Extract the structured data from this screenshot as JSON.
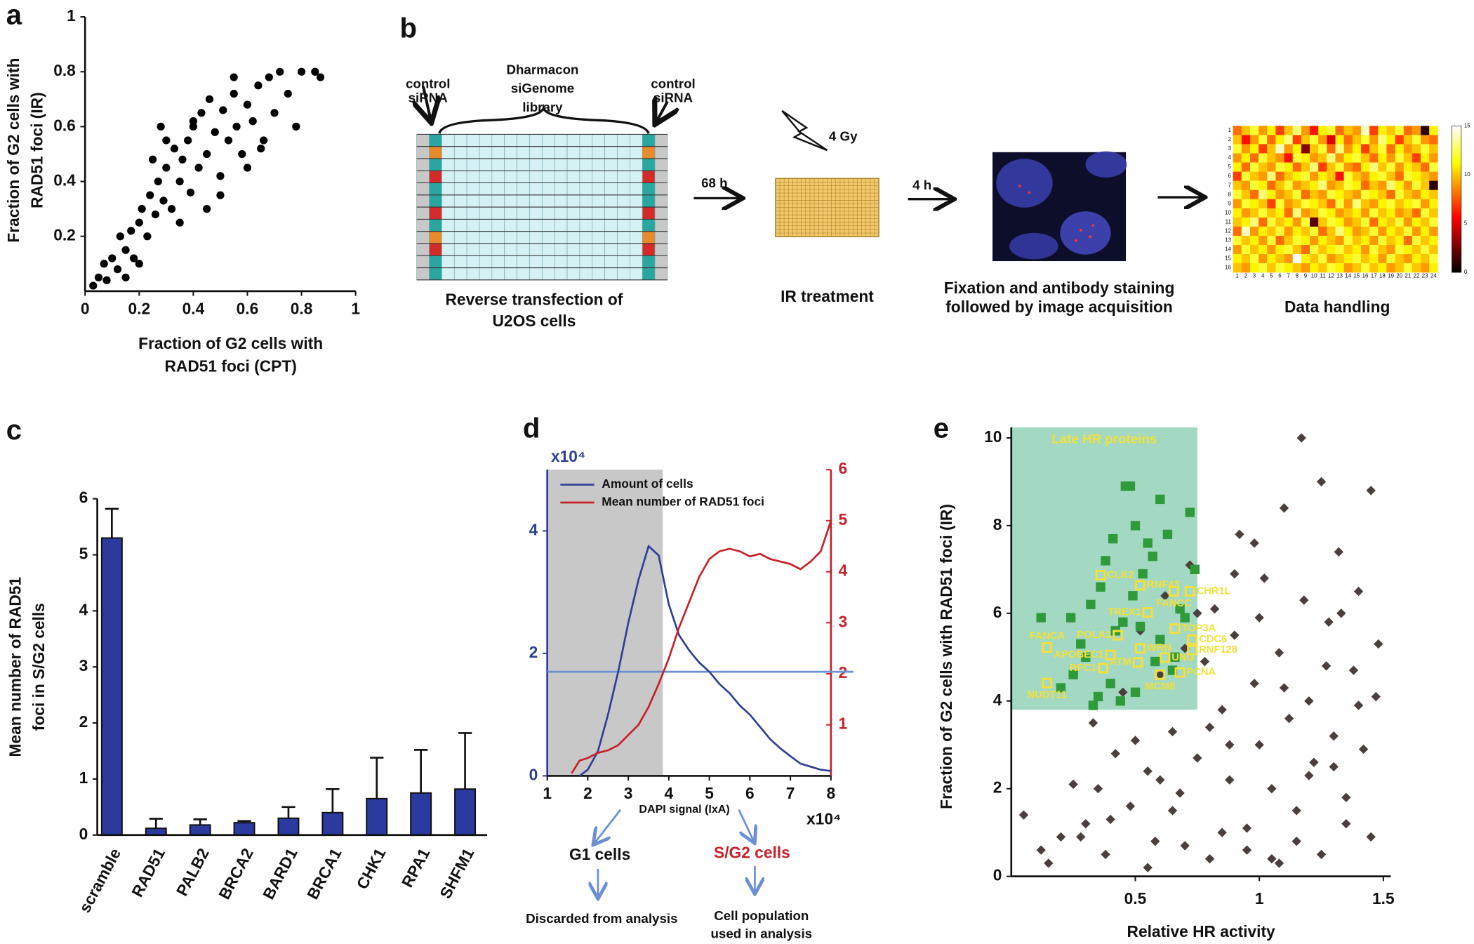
{
  "panel_labels": [
    "a",
    "b",
    "c",
    "d",
    "e"
  ],
  "chart_data": [
    {
      "type": "scatter",
      "color": "#000000",
      "x": [
        0.03,
        0.05,
        0.07,
        0.08,
        0.1,
        0.12,
        0.13,
        0.15,
        0.17,
        0.18,
        0.2,
        0.21,
        0.23,
        0.24,
        0.26,
        0.27,
        0.29,
        0.3,
        0.32,
        0.33,
        0.35,
        0.36,
        0.38,
        0.39,
        0.4,
        0.42,
        0.43,
        0.45,
        0.46,
        0.48,
        0.5,
        0.51,
        0.53,
        0.55,
        0.56,
        0.58,
        0.6,
        0.62,
        0.64,
        0.66,
        0.68,
        0.7,
        0.72,
        0.75,
        0.78,
        0.8,
        0.85,
        0.87,
        0.25,
        0.3,
        0.35,
        0.28,
        0.45,
        0.5,
        0.6,
        0.15,
        0.2,
        0.4,
        0.55,
        0.65
      ],
      "values": [
        0.02,
        0.05,
        0.1,
        0.04,
        0.12,
        0.08,
        0.2,
        0.15,
        0.22,
        0.12,
        0.25,
        0.3,
        0.2,
        0.35,
        0.28,
        0.4,
        0.33,
        0.45,
        0.3,
        0.52,
        0.4,
        0.48,
        0.55,
        0.36,
        0.6,
        0.45,
        0.65,
        0.5,
        0.7,
        0.58,
        0.42,
        0.66,
        0.55,
        0.72,
        0.6,
        0.5,
        0.68,
        0.62,
        0.75,
        0.55,
        0.78,
        0.65,
        0.8,
        0.72,
        0.6,
        0.8,
        0.8,
        0.78,
        0.48,
        0.55,
        0.25,
        0.6,
        0.3,
        0.35,
        0.45,
        0.05,
        0.1,
        0.62,
        0.78,
        0.52
      ],
      "xlim": [
        0,
        1
      ],
      "ylim": [
        0,
        1
      ],
      "xticks": [
        0,
        0.2,
        0.4,
        0.6,
        0.8,
        1
      ],
      "yticks": [
        0.2,
        0.4,
        0.6,
        0.8,
        1
      ],
      "xlabel": [
        "Fraction of G2 cells with",
        "RAD51 foci (CPT)"
      ],
      "ylabel": [
        "Fraction of G2 cells with",
        "RAD51 foci (IR)"
      ]
    },
    {
      "type": "bar",
      "color": "#2a3a9e",
      "categories": [
        "scramble",
        "RAD51",
        "PALB2",
        "BRCA2",
        "BARD1",
        "BRCA1",
        "CHK1",
        "RPA1",
        "SHFM1"
      ],
      "values": [
        5.3,
        0.12,
        0.18,
        0.22,
        0.3,
        0.4,
        0.65,
        0.75,
        0.82
      ],
      "errors": [
        0.52,
        0.17,
        0.1,
        0.03,
        0.2,
        0.42,
        0.73,
        0.77,
        1.0
      ],
      "ylim": [
        0,
        6
      ],
      "yticks": [
        0,
        1,
        2,
        3,
        4,
        5,
        6
      ],
      "ylabel": [
        "Mean number of RAD51",
        "foci in S/G2 cells"
      ]
    },
    {
      "type": "line",
      "x": [
        1.6,
        1.8,
        2,
        2.25,
        2.5,
        2.75,
        3,
        3.25,
        3.5,
        3.75,
        4,
        4.25,
        4.5,
        4.75,
        5,
        5.25,
        5.5,
        5.75,
        6,
        6.25,
        6.5,
        6.75,
        7,
        7.25,
        7.5,
        7.75,
        8
      ],
      "series": [
        {
          "name": "Amount of cells",
          "color": "#2e3f95",
          "values": [
            null,
            0,
            0.1,
            0.4,
            1.0,
            1.7,
            2.5,
            3.2,
            3.75,
            3.6,
            2.8,
            2.3,
            2.05,
            1.85,
            1.7,
            1.5,
            1.35,
            1.15,
            1.0,
            0.8,
            0.6,
            0.45,
            0.32,
            0.2,
            0.15,
            0.1,
            0.08
          ]
        },
        {
          "name": "Mean number of RAD51 foci",
          "color": "#c8202a",
          "axis": "y2",
          "values": [
            0.05,
            0.3,
            0.35,
            0.45,
            0.5,
            0.6,
            0.8,
            1.0,
            1.35,
            1.8,
            2.3,
            2.9,
            3.4,
            3.9,
            4.25,
            4.4,
            4.45,
            4.4,
            4.3,
            4.35,
            4.25,
            4.2,
            4.15,
            4.05,
            4.2,
            4.4,
            5.0
          ]
        }
      ],
      "xlim": [
        1,
        8
      ],
      "ylim": [
        0,
        5
      ],
      "y2lim": [
        0,
        6
      ],
      "xticks": [
        1,
        2,
        3,
        4,
        5,
        6,
        7,
        8
      ],
      "yticks": [
        0,
        2,
        4
      ],
      "y2ticks": [
        1,
        2,
        3,
        4,
        5,
        6
      ],
      "gate": [
        1,
        3.85
      ],
      "gate_color": "#c8c8c8",
      "threshold": 1.7,
      "threshold_color": "#6b8fd2",
      "y_multiplier": "x10⁴",
      "x_multiplier": "x10⁴",
      "xlabel": "DAPI signal (IxA)"
    },
    {
      "type": "scatter",
      "series": [
        {
          "color": "#4a3f3c",
          "marker": "diamond",
          "x": [
            0.05,
            0.12,
            0.2,
            0.25,
            0.3,
            0.33,
            0.38,
            0.42,
            0.45,
            0.48,
            0.5,
            0.52,
            0.55,
            0.58,
            0.6,
            0.62,
            0.65,
            0.68,
            0.7,
            0.72,
            0.75,
            0.78,
            0.8,
            0.82,
            0.85,
            0.88,
            0.9,
            0.92,
            0.95,
            0.98,
            1.0,
            1.02,
            1.05,
            1.08,
            1.1,
            1.12,
            1.15,
            1.18,
            1.2,
            1.22,
            1.25,
            1.28,
            1.3,
            1.32,
            1.35,
            1.38,
            1.4,
            1.42,
            1.45,
            1.48,
            0.15,
            0.28,
            0.4,
            0.55,
            0.7,
            0.85,
            0.95,
            1.05,
            1.15,
            1.25,
            1.35,
            1.45,
            0.6,
            0.8,
            1.0,
            1.2,
            1.4,
            0.9,
            1.1,
            1.3,
            0.35,
            0.65,
            0.75,
            0.98,
            1.17,
            1.33,
            1.47,
            1.08,
            0.88,
            1.27
          ],
          "values": [
            1.4,
            0.6,
            0.9,
            2.1,
            1.2,
            3.5,
            0.5,
            2.8,
            4.2,
            1.6,
            3.1,
            5.6,
            2.4,
            0.8,
            4.6,
            6.4,
            3.3,
            1.9,
            5.2,
            7.1,
            2.7,
            4.9,
            0.4,
            6.1,
            3.8,
            2.2,
            5.5,
            7.8,
            1.1,
            4.4,
            3.0,
            6.8,
            2.0,
            5.1,
            8.4,
            3.6,
            1.5,
            6.3,
            4.0,
            2.6,
            9.0,
            5.8,
            3.2,
            7.4,
            1.8,
            4.7,
            6.5,
            2.9,
            8.8,
            5.3,
            0.3,
            0.9,
            1.3,
            0.2,
            0.7,
            1.0,
            0.6,
            0.4,
            0.8,
            0.5,
            1.2,
            0.9,
            2.2,
            3.4,
            5.9,
            2.3,
            3.9,
            6.9,
            4.3,
            2.5,
            2.0,
            1.5,
            6.0,
            7.6,
            10.0,
            6.0,
            4.1,
            0.3,
            3.0,
            4.8
          ]
        },
        {
          "color": "#2f9a3a",
          "marker": "square",
          "x": [
            0.2,
            0.25,
            0.3,
            0.35,
            0.4,
            0.45,
            0.5,
            0.55,
            0.6,
            0.65,
            0.7,
            0.72,
            0.32,
            0.38,
            0.42,
            0.48,
            0.53,
            0.58,
            0.63,
            0.68,
            0.28,
            0.36,
            0.44,
            0.5,
            0.57,
            0.66,
            0.74,
            0.46,
            0.52,
            0.6,
            0.24,
            0.33,
            0.41,
            0.49,
            0.12
          ],
          "values": [
            4.3,
            4.6,
            5.0,
            4.1,
            4.4,
            5.8,
            4.2,
            7.6,
            5.4,
            4.7,
            5.9,
            8.3,
            6.2,
            7.2,
            5.6,
            8.9,
            6.9,
            4.9,
            7.8,
            6.1,
            5.3,
            6.6,
            4.0,
            8.0,
            7.3,
            5.0,
            7.0,
            8.9,
            5.7,
            8.6,
            5.9,
            3.9,
            7.7,
            6.4,
            5.9
          ]
        }
      ],
      "labeled_points": {
        "color": "#f4e03a",
        "labels": [
          "CLK2",
          "RNF43",
          "FANCC",
          "CHR1L",
          "TREX1",
          "TOP3A",
          "POLA1",
          "CDC6",
          "FANCA",
          "WRN",
          "RNF128",
          "APOBEC1",
          "UNG",
          "RFC1",
          "ATM",
          "PCNA",
          "MCM8",
          "NUDT11"
        ],
        "x": [
          0.36,
          0.52,
          0.655,
          0.72,
          0.55,
          0.66,
          0.43,
          0.73,
          0.144,
          0.52,
          0.73,
          0.4,
          0.62,
          0.37,
          0.51,
          0.68,
          0.6,
          0.144
        ],
        "values": [
          6.87,
          6.64,
          6.5,
          6.5,
          6.02,
          5.65,
          5.5,
          5.4,
          5.22,
          5.2,
          5.16,
          5.05,
          4.99,
          4.75,
          4.88,
          4.65,
          4.6,
          4.41
        ]
      },
      "region": {
        "label": "Late HR proteins",
        "x": [
          0,
          0.75
        ],
        "y": [
          3.8,
          10.24
        ],
        "color": "#a3d8c2"
      },
      "xlim": [
        0,
        1.53
      ],
      "ylim": [
        0,
        10.24
      ],
      "xticks": [
        0.5,
        1,
        1.5
      ],
      "yticks": [
        0,
        2,
        4,
        6,
        8,
        10
      ],
      "xlabel": "Relative HR activity",
      "ylabel": "Fraction of G2 cells with RAD51 foci (IR)"
    }
  ],
  "diagram": {
    "control_left": [
      "control",
      "siRNA"
    ],
    "library": [
      "Dharmacon",
      "siGenome",
      "library"
    ],
    "control_right": [
      "control",
      "siRNA"
    ],
    "step1": [
      "Reverse transfection of",
      "U2OS cells"
    ],
    "time1": "68 h",
    "dose": "4 Gy",
    "step2": "IR treatment",
    "time2": "4 h",
    "step3": [
      "Fixation and antibody staining",
      "followed by image acquisition"
    ],
    "step4": "Data handling",
    "heatmap": {
      "row_labels": [
        1,
        2,
        3,
        4,
        5,
        6,
        7,
        8,
        9,
        10,
        11,
        12,
        13,
        14,
        15,
        16
      ],
      "col_labels": [
        1,
        2,
        3,
        4,
        5,
        6,
        7,
        8,
        9,
        10,
        11,
        12,
        13,
        14,
        15,
        16,
        17,
        18,
        19,
        20,
        21,
        22,
        23,
        24
      ],
      "colorbar_ticks": [
        0,
        5,
        10,
        15
      ],
      "values": [
        [
          8,
          10,
          12,
          9,
          11,
          7,
          10,
          13,
          9,
          6,
          11,
          12,
          8,
          10,
          9,
          14,
          7,
          11,
          10,
          12,
          8,
          9,
          1,
          11
        ],
        [
          10,
          6,
          9,
          12,
          8,
          11,
          13,
          7,
          10,
          12,
          9,
          5,
          11,
          8,
          10,
          12,
          9,
          13,
          11,
          7,
          10,
          12,
          9,
          8
        ],
        [
          12,
          9,
          11,
          7,
          10,
          14,
          9,
          11,
          3,
          10,
          12,
          8,
          13,
          9,
          11,
          7,
          10,
          12,
          8,
          11,
          9,
          10,
          12,
          10
        ],
        [
          9,
          11,
          8,
          12,
          10,
          9,
          6,
          12,
          11,
          9,
          10,
          13,
          9,
          11,
          12,
          10,
          8,
          11,
          9,
          12,
          10,
          7,
          11,
          9
        ],
        [
          11,
          8,
          12,
          10,
          9,
          12,
          11,
          8,
          10,
          13,
          7,
          10,
          12,
          9,
          8,
          11,
          13,
          10,
          12,
          9,
          11,
          10,
          8,
          12
        ],
        [
          7,
          12,
          10,
          9,
          13,
          8,
          10,
          11,
          12,
          9,
          11,
          10,
          6,
          12,
          10,
          9,
          11,
          12,
          10,
          8,
          12,
          11,
          10,
          9
        ],
        [
          10,
          9,
          12,
          11,
          8,
          10,
          12,
          9,
          10,
          11,
          13,
          9,
          10,
          12,
          11,
          8,
          10,
          9,
          13,
          11,
          9,
          12,
          10,
          1
        ],
        [
          12,
          10,
          8,
          13,
          11,
          9,
          10,
          12,
          8,
          10,
          9,
          12,
          11,
          10,
          9,
          12,
          11,
          10,
          8,
          12,
          10,
          9,
          11,
          10
        ],
        [
          9,
          12,
          11,
          10,
          7,
          12,
          9,
          10,
          12,
          11,
          10,
          8,
          12,
          9,
          13,
          10,
          9,
          11,
          12,
          10,
          11,
          12,
          9,
          11
        ],
        [
          11,
          9,
          10,
          12,
          10,
          11,
          8,
          13,
          9,
          10,
          12,
          11,
          9,
          10,
          11,
          9,
          12,
          10,
          11,
          9,
          10,
          8,
          12,
          10
        ],
        [
          10,
          11,
          13,
          8,
          12,
          10,
          11,
          9,
          12,
          2,
          10,
          12,
          11,
          9,
          10,
          12,
          8,
          11,
          10,
          12,
          9,
          11,
          10,
          12
        ],
        [
          8,
          14,
          9,
          11,
          10,
          12,
          9,
          11,
          10,
          12,
          8,
          10,
          13,
          11,
          9,
          10,
          12,
          9,
          11,
          10,
          12,
          9,
          11,
          9
        ],
        [
          12,
          10,
          11,
          9,
          12,
          8,
          10,
          12,
          11,
          9,
          11,
          10,
          9,
          12,
          10,
          11,
          9,
          12,
          10,
          11,
          8,
          12,
          10,
          11
        ],
        [
          9,
          12,
          10,
          11,
          9,
          11,
          12,
          10,
          8,
          12,
          10,
          11,
          12,
          10,
          11,
          9,
          12,
          10,
          9,
          12,
          11,
          10,
          12,
          10
        ],
        [
          11,
          10,
          12,
          9,
          11,
          10,
          9,
          15,
          11,
          10,
          12,
          9,
          10,
          11,
          12,
          10,
          11,
          9,
          12,
          10,
          9,
          11,
          10,
          12
        ],
        [
          10,
          9,
          11,
          12,
          10,
          12,
          11,
          10,
          9,
          11,
          10,
          12,
          11,
          9,
          10,
          12,
          10,
          11,
          9,
          10,
          12,
          10,
          9,
          11
        ]
      ]
    }
  },
  "flow": {
    "left": "G1 cells",
    "right": "S/G2 cells",
    "left_note": [
      "Discarded from analysis"
    ],
    "right_note": [
      "Cell population",
      "used in analysis"
    ]
  }
}
